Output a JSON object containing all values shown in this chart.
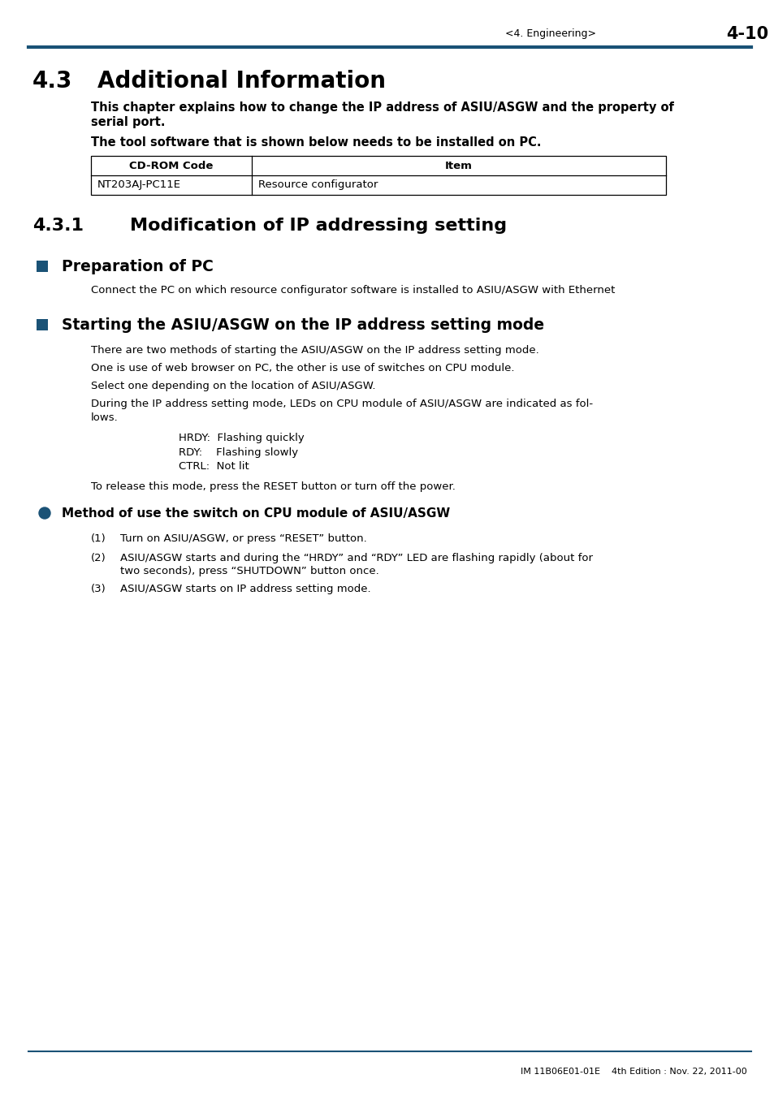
{
  "page_header_left": "<4. Engineering>",
  "page_header_right": "4-10",
  "blue_color": "#1a5276",
  "title_43": "4.3",
  "title_43b": "Additional Information",
  "para1a": "This chapter explains how to change the IP address of ASIU/ASGW and the property of",
  "para1b": "serial port.",
  "para2": "The tool software that is shown below needs to be installed on PC.",
  "table_headers": [
    "CD-ROM Code",
    "Item"
  ],
  "table_row": [
    "NT203AJ-PC11E",
    "Resource configurator"
  ],
  "title_431": "4.3.1",
  "title_431b": "Modification of IP addressing setting",
  "section1_title": "Preparation of PC",
  "section1_body": "Connect the PC on which resource configurator software is installed to ASIU/ASGW with Ethernet",
  "section2_title": "Starting the ASIU/ASGW on the IP address setting mode",
  "section2_line1": "There are two methods of starting the ASIU/ASGW on the IP address setting mode.",
  "section2_line2": "One is use of web browser on PC, the other is use of switches on CPU module.",
  "section2_line3": "Select one depending on the location of ASIU/ASGW.",
  "section2_line4a": "During the IP address setting mode, LEDs on CPU module of ASIU/ASGW are indicated as fol-",
  "section2_line4b": "lows.",
  "indent_line1": "HRDY:  Flashing quickly",
  "indent_line2": "RDY:    Flashing slowly",
  "indent_line3": "CTRL:  Not lit",
  "release_text": "To release this mode, press the RESET button or turn off the power.",
  "subsection_title": "Method of use the switch on CPU module of ASIU/ASGW",
  "num1": "Turn on ASIU/ASGW, or press “RESET” button.",
  "num2a": "ASIU/ASGW starts and during the “HRDY” and “RDY” LED are flashing rapidly (about for",
  "num2b": "two seconds), press “SHUTDOWN” button once.",
  "num3": "ASIU/ASGW starts on IP address setting mode.",
  "footer_text": "IM 11B06E01-01E    4th Edition : Nov. 22, 2011-00",
  "bg_color": "#ffffff",
  "text_color": "#000000"
}
